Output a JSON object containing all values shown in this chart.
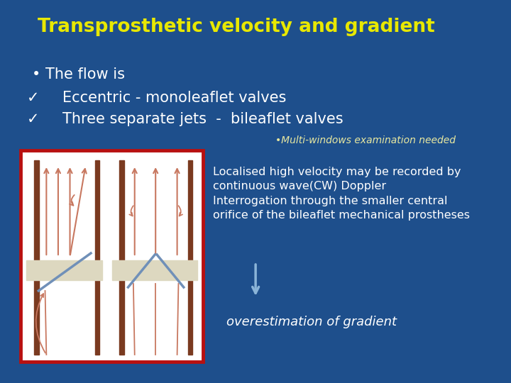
{
  "background_color": "#1e4f8c",
  "title": "Transprosthetic velocity and gradient",
  "title_color": "#e8e800",
  "title_fontsize": 19,
  "bullet_text": "The flow is",
  "text_color": "#ffffff",
  "text_fontsize": 15,
  "check1_text": "Eccentric - monoleaflet valves",
  "check2_text": "Three separate jets  -  bileaflet valves",
  "multiwindow_text": "•Multi-windows examination needed",
  "multiwindow_color": "#e8e8a0",
  "multiwindow_fontsize": 10,
  "body_text": "Localised high velocity may be recorded by\ncontinuous wave(CW) Doppler\nInterrogation through the smaller central\norifice of the bileaflet mechanical prostheses",
  "body_color": "#ffffff",
  "body_fontsize": 11.5,
  "arrow_color": "#8ab4d8",
  "overestimation_text": "overestimation of gradient",
  "overestimation_color": "#ffffff",
  "overestimation_fontsize": 13,
  "image_box_color": "#b81010",
  "pillar_color": "#7a3a20",
  "bar_color": "#ddd8c0",
  "flow_arrow_color": "#c87860",
  "leaflet_color": "#7090b8"
}
